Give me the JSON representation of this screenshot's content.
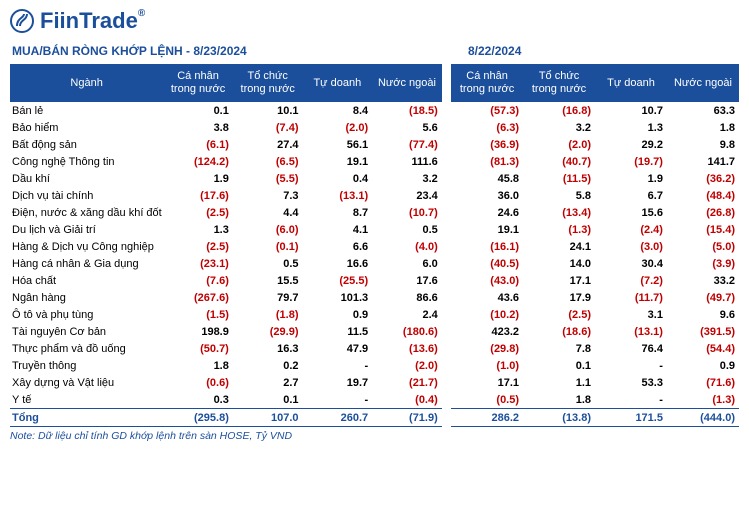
{
  "brand": {
    "name_part1": "Fiin",
    "name_part2": "Trade",
    "tm": "®"
  },
  "title_left": "MUA/BÁN RÒNG KHỚP LỆNH - 8/23/2024",
  "title_right": "8/22/2024",
  "headers": {
    "sector": "Ngành",
    "c1": "Cá nhân trong nước",
    "c2": "Tổ chức trong nước",
    "c3": "Tự doanh",
    "c4": "Nước ngoài",
    "d1": "Cá nhân trong nước",
    "d2": "Tổ chức trong nước",
    "d3": "Tự doanh",
    "d4": "Nước ngoài"
  },
  "rows": [
    {
      "sector": "Bán lẻ",
      "l": [
        0.1,
        10.1,
        8.4,
        -18.5
      ],
      "r": [
        -57.3,
        -16.8,
        10.7,
        63.3
      ]
    },
    {
      "sector": "Bảo hiểm",
      "l": [
        3.8,
        -7.4,
        -2.0,
        5.6
      ],
      "r": [
        -6.3,
        3.2,
        1.3,
        1.8
      ]
    },
    {
      "sector": "Bất động sản",
      "l": [
        -6.1,
        27.4,
        56.1,
        -77.4
      ],
      "r": [
        -36.9,
        -2.0,
        29.2,
        9.8
      ]
    },
    {
      "sector": "Công nghệ Thông tin",
      "l": [
        -124.2,
        -6.5,
        19.1,
        111.6
      ],
      "r": [
        -81.3,
        -40.7,
        -19.7,
        141.7
      ]
    },
    {
      "sector": "Dầu khí",
      "l": [
        1.9,
        -5.5,
        0.4,
        3.2
      ],
      "r": [
        45.8,
        -11.5,
        1.9,
        -36.2
      ]
    },
    {
      "sector": "Dịch vụ tài chính",
      "l": [
        -17.6,
        7.3,
        -13.1,
        23.4
      ],
      "r": [
        36.0,
        5.8,
        6.7,
        -48.4
      ]
    },
    {
      "sector": "Điện, nước & xăng dầu khí đốt",
      "l": [
        -2.5,
        4.4,
        8.7,
        -10.7
      ],
      "r": [
        24.6,
        -13.4,
        15.6,
        -26.8
      ]
    },
    {
      "sector": "Du lịch và Giải trí",
      "l": [
        1.3,
        -6.0,
        4.1,
        0.5
      ],
      "r": [
        19.1,
        -1.3,
        -2.4,
        -15.4
      ]
    },
    {
      "sector": "Hàng & Dịch vụ Công nghiệp",
      "l": [
        -2.5,
        -0.1,
        6.6,
        -4.0
      ],
      "r": [
        -16.1,
        24.1,
        -3.0,
        -5.0
      ]
    },
    {
      "sector": "Hàng cá nhân & Gia dụng",
      "l": [
        -23.1,
        0.5,
        16.6,
        6.0
      ],
      "r": [
        -40.5,
        14.0,
        30.4,
        -3.9
      ]
    },
    {
      "sector": "Hóa chất",
      "l": [
        -7.6,
        15.5,
        -25.5,
        17.6
      ],
      "r": [
        -43.0,
        17.1,
        -7.2,
        33.2
      ]
    },
    {
      "sector": "Ngân hàng",
      "l": [
        -267.6,
        79.7,
        101.3,
        86.6
      ],
      "r": [
        43.6,
        17.9,
        -11.7,
        -49.7
      ]
    },
    {
      "sector": "Ô tô và phụ tùng",
      "l": [
        -1.5,
        -1.8,
        0.9,
        2.4
      ],
      "r": [
        -10.2,
        -2.5,
        3.1,
        9.6
      ]
    },
    {
      "sector": "Tài nguyên Cơ bản",
      "l": [
        198.9,
        -29.9,
        11.5,
        -180.6
      ],
      "r": [
        423.2,
        -18.6,
        -13.1,
        -391.5
      ]
    },
    {
      "sector": "Thực phẩm và đồ uống",
      "l": [
        -50.7,
        16.3,
        47.9,
        -13.6
      ],
      "r": [
        -29.8,
        7.8,
        76.4,
        -54.4
      ]
    },
    {
      "sector": "Truyền thông",
      "l": [
        1.8,
        0.2,
        null,
        -2.0
      ],
      "r": [
        -1.0,
        0.1,
        null,
        0.9
      ]
    },
    {
      "sector": "Xây dựng và Vật liệu",
      "l": [
        -0.6,
        2.7,
        19.7,
        -21.7
      ],
      "r": [
        17.1,
        1.1,
        53.3,
        -71.6
      ]
    },
    {
      "sector": "Y tế",
      "l": [
        0.3,
        0.1,
        null,
        -0.4
      ],
      "r": [
        -0.5,
        1.8,
        null,
        -1.3
      ]
    }
  ],
  "total": {
    "sector": "Tổng",
    "l": [
      -295.8,
      107.0,
      260.7,
      -71.9
    ],
    "r": [
      286.2,
      -13.8,
      171.5,
      -444.0
    ]
  },
  "note": "Note: Dữ liệu chỉ tính GD khớp lệnh trên sàn HOSE, Tỷ VND",
  "colors": {
    "brand_blue": "#1b4f9c",
    "negative": "#c00000",
    "positive": "#000000",
    "header_bg": "#1b4f9c",
    "header_fg": "#ffffff"
  }
}
